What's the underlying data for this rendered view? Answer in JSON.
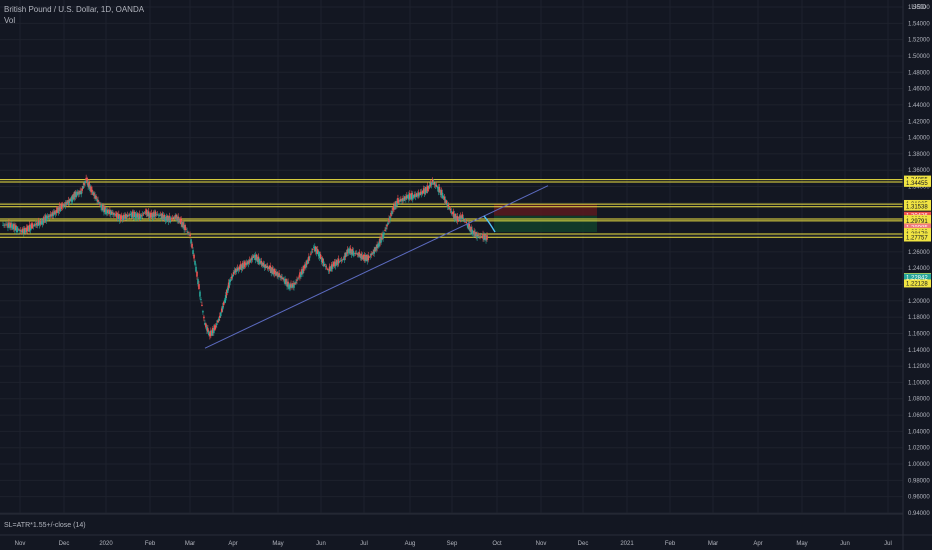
{
  "header": {
    "symbol_title": "British Pound / U.S. Dollar, 1D, OANDA",
    "indicator": "Vol"
  },
  "currency_label": "USD",
  "indicator_pane_label": "SL=ATR*1.55+/-close (14)",
  "colors": {
    "background": "#131722",
    "grid": "#1e222d",
    "up_candle": "#26a69a",
    "down_candle": "#ef5350",
    "level_line": "#f0e442",
    "trendline": "#5c6bc0",
    "stop_zone": "#5b1a1f",
    "target_zone": "#123d2a",
    "projection": "#4fc3f7"
  },
  "chart_data": {
    "type": "candlestick",
    "ylim": [
      0.94,
      1.56
    ],
    "y_ticks": [
      "1.56000",
      "1.54000",
      "1.52000",
      "1.50000",
      "1.48000",
      "1.46000",
      "1.44000",
      "1.42000",
      "1.40000",
      "1.38000",
      "1.36000",
      "1.34000",
      "1.32000",
      "1.30000",
      "1.28000",
      "1.26000",
      "1.24000",
      "1.22000",
      "1.20000",
      "1.18000",
      "1.16000",
      "1.14000",
      "1.12000",
      "1.10000",
      "1.08000",
      "1.06000",
      "1.04000",
      "1.02000",
      "1.00000",
      "0.98000",
      "0.96000",
      "0.94000"
    ],
    "x_ticks": [
      "Nov",
      "Dec",
      "2020",
      "Feb",
      "Mar",
      "Apr",
      "May",
      "Jun",
      "Jul",
      "Aug",
      "Sep",
      "Oct",
      "Nov",
      "Dec",
      "2021",
      "Feb",
      "Mar",
      "Apr",
      "May",
      "Jun",
      "Jul"
    ],
    "price_path": [
      1.293,
      1.292,
      1.288,
      1.285,
      1.287,
      1.291,
      1.294,
      1.296,
      1.302,
      1.305,
      1.309,
      1.315,
      1.319,
      1.324,
      1.331,
      1.333,
      1.349,
      1.336,
      1.326,
      1.316,
      1.31,
      1.308,
      1.305,
      1.301,
      1.303,
      1.306,
      1.305,
      1.303,
      1.309,
      1.304,
      1.306,
      1.305,
      1.301,
      1.3,
      1.303,
      1.298,
      1.289,
      1.28,
      1.247,
      1.209,
      1.172,
      1.158,
      1.166,
      1.18,
      1.2,
      1.223,
      1.236,
      1.24,
      1.244,
      1.248,
      1.255,
      1.249,
      1.243,
      1.24,
      1.235,
      1.231,
      1.226,
      1.218,
      1.219,
      1.229,
      1.239,
      1.251,
      1.266,
      1.258,
      1.246,
      1.237,
      1.244,
      1.248,
      1.251,
      1.262,
      1.259,
      1.257,
      1.253,
      1.252,
      1.259,
      1.268,
      1.28,
      1.295,
      1.312,
      1.322,
      1.324,
      1.328,
      1.328,
      1.33,
      1.333,
      1.337,
      1.346,
      1.339,
      1.33,
      1.318,
      1.307,
      1.3,
      1.303,
      1.294,
      1.285,
      1.28,
      1.279,
      1.277
    ],
    "levels": [
      1.3485,
      1.3455,
      1.3185,
      1.3153,
      1.3002,
      1.2979,
      1.2818,
      1.2779
    ],
    "trendline": {
      "from": [
        1.142
      ],
      "to": [
        1.341
      ]
    },
    "position": {
      "entry": 1.3042,
      "stop": 1.3185,
      "target": 1.2842
    },
    "price_tags": [
      {
        "text": "1.34855",
        "value": 1.34855,
        "bg": "#f0e442",
        "fg": "#131722"
      },
      {
        "text": "1.34455",
        "value": 1.34455,
        "bg": "#f0e442",
        "fg": "#131722"
      },
      {
        "text": "1.31865",
        "value": 1.31865,
        "bg": "#f0e442",
        "fg": "#131722"
      },
      {
        "text": "1.31538",
        "value": 1.31538,
        "bg": "#f0e442",
        "fg": "#131722"
      },
      {
        "text": "1.30426",
        "value": 1.30426,
        "bg": "#ef5350",
        "fg": "#ffffff"
      },
      {
        "text": "1.30020",
        "value": 1.3002,
        "bg": "#f0e442",
        "fg": "#131722"
      },
      {
        "text": "1.29791",
        "value": 1.29791,
        "bg": "#f0e442",
        "fg": "#131722"
      },
      {
        "text": "1.28985",
        "value": 1.28985,
        "bg": "#ef7b7b",
        "fg": "#ffffff"
      },
      {
        "text": "12:21:32",
        "value": 1.2855,
        "bg": "#ef7b7b",
        "fg": "#ffffff"
      },
      {
        "text": "1.28423",
        "value": 1.28423,
        "bg": "#f0e442",
        "fg": "#131722"
      },
      {
        "text": "1.28178",
        "value": 1.28178,
        "bg": "#f0e442",
        "fg": "#131722"
      },
      {
        "text": "1.27757",
        "value": 1.27757,
        "bg": "#f0e442",
        "fg": "#131722"
      },
      {
        "text": "1.22913",
        "value": 1.22913,
        "bg": "#f0e442",
        "fg": "#131722"
      },
      {
        "text": "1.22842",
        "value": 1.22842,
        "bg": "#26a69a",
        "fg": "#ffffff"
      },
      {
        "text": "1.22128",
        "value": 1.22128,
        "bg": "#f0e442",
        "fg": "#131722"
      }
    ]
  }
}
